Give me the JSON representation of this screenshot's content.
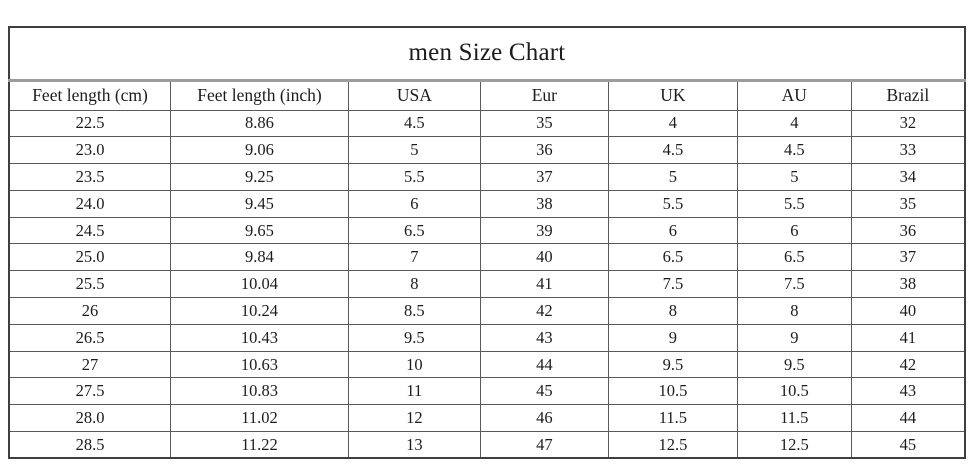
{
  "title": "men Size Chart",
  "chart_data": {
    "type": "table",
    "title": "men Size Chart",
    "columns": [
      "Feet length (cm)",
      "Feet length (inch)",
      "USA",
      "Eur",
      "UK",
      "AU",
      "Brazil"
    ],
    "rows": [
      [
        "22.5",
        "8.86",
        "4.5",
        "35",
        "4",
        "4",
        "32"
      ],
      [
        "23.0",
        "9.06",
        "5",
        "36",
        "4.5",
        "4.5",
        "33"
      ],
      [
        "23.5",
        "9.25",
        "5.5",
        "37",
        "5",
        "5",
        "34"
      ],
      [
        "24.0",
        "9.45",
        "6",
        "38",
        "5.5",
        "5.5",
        "35"
      ],
      [
        "24.5",
        "9.65",
        "6.5",
        "39",
        "6",
        "6",
        "36"
      ],
      [
        "25.0",
        "9.84",
        "7",
        "40",
        "6.5",
        "6.5",
        "37"
      ],
      [
        "25.5",
        "10.04",
        "8",
        "41",
        "7.5",
        "7.5",
        "38"
      ],
      [
        "26",
        "10.24",
        "8.5",
        "42",
        "8",
        "8",
        "40"
      ],
      [
        "26.5",
        "10.43",
        "9.5",
        "43",
        "9",
        "9",
        "41"
      ],
      [
        "27",
        "10.63",
        "10",
        "44",
        "9.5",
        "9.5",
        "42"
      ],
      [
        "27.5",
        "10.83",
        "11",
        "45",
        "10.5",
        "10.5",
        "43"
      ],
      [
        "28.0",
        "11.02",
        "12",
        "46",
        "11.5",
        "11.5",
        "44"
      ],
      [
        "28.5",
        "11.22",
        "13",
        "47",
        "12.5",
        "12.5",
        "45"
      ]
    ]
  },
  "colors": {
    "background": "#ffffff",
    "text": "#1c1c1c",
    "grid_border": "#5a5a5a",
    "outer_border": "#3f3f3f",
    "header_divider": "#9c9c9c"
  }
}
